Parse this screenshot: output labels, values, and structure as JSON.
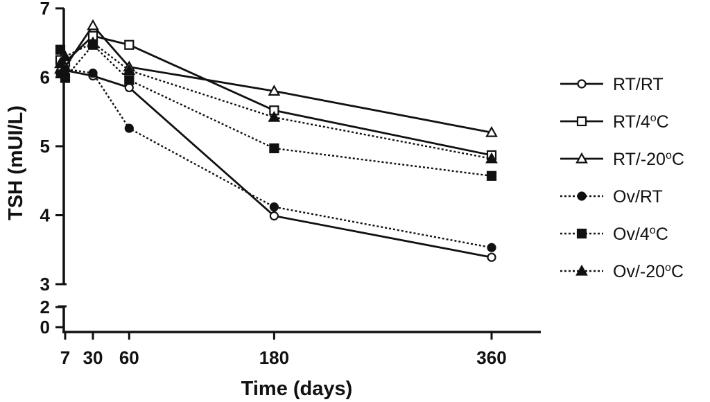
{
  "chart_data": {
    "type": "line",
    "xlabel": "Time (days)",
    "ylabel": "TSH (mUI/L)",
    "x": [
      7,
      30,
      60,
      180,
      360
    ],
    "x_tick_labels": [
      "7",
      "30",
      "60",
      "180",
      "360"
    ],
    "y_segment_upper": {
      "range": [
        3,
        7
      ],
      "ticks": [
        "3",
        "4",
        "5",
        "6",
        "7"
      ]
    },
    "y_segment_lower": {
      "range": [
        0,
        2
      ],
      "ticks": [
        "0",
        "2"
      ]
    },
    "legend_position": "right",
    "series": [
      {
        "name": "RT/RT",
        "name_base": "RT/RT",
        "name_sup": "",
        "name_tail": "",
        "line": "solid",
        "marker": "circle",
        "filled": false,
        "x": [
          3,
          7,
          30,
          60,
          180,
          360
        ],
        "values": [
          6.08,
          6.1,
          6.02,
          5.85,
          3.99,
          3.39
        ]
      },
      {
        "name": "RT/4°C",
        "name_base": "RT/4",
        "name_sup": "o",
        "name_tail": "C",
        "line": "solid",
        "marker": "square",
        "filled": false,
        "x": [
          3,
          7,
          30,
          60,
          180,
          360
        ],
        "values": [
          6.25,
          6.22,
          6.6,
          6.47,
          5.52,
          4.87
        ]
      },
      {
        "name": "RT/-20°C",
        "name_base": "RT/-20",
        "name_sup": "o",
        "name_tail": "C",
        "line": "solid",
        "marker": "triangle",
        "filled": false,
        "x": [
          3,
          7,
          30,
          60,
          180,
          360
        ],
        "values": [
          6.12,
          6.15,
          6.75,
          6.15,
          5.8,
          5.2
        ]
      },
      {
        "name": "Ov/RT",
        "name_base": "Ov/RT",
        "name_sup": "",
        "name_tail": "",
        "line": "dotted",
        "marker": "circle",
        "filled": true,
        "x": [
          3,
          7,
          30,
          60,
          180,
          360
        ],
        "values": [
          6.05,
          6.12,
          6.06,
          5.26,
          4.12,
          3.53
        ]
      },
      {
        "name": "Ov/4°C",
        "name_base": "Ov/4",
        "name_sup": "o",
        "name_tail": "C",
        "line": "dotted",
        "marker": "square",
        "filled": true,
        "x": [
          3,
          7,
          30,
          60,
          180,
          360
        ],
        "values": [
          6.4,
          5.99,
          6.47,
          5.96,
          4.97,
          4.57
        ]
      },
      {
        "name": "Ov/-20°C",
        "name_base": "Ov/-20",
        "name_sup": "o",
        "name_tail": "C",
        "line": "dotted",
        "marker": "triangle",
        "filled": true,
        "x": [
          3,
          7,
          30,
          60,
          180,
          360
        ],
        "values": [
          6.2,
          6.3,
          6.5,
          6.1,
          5.42,
          4.82
        ]
      }
    ]
  }
}
